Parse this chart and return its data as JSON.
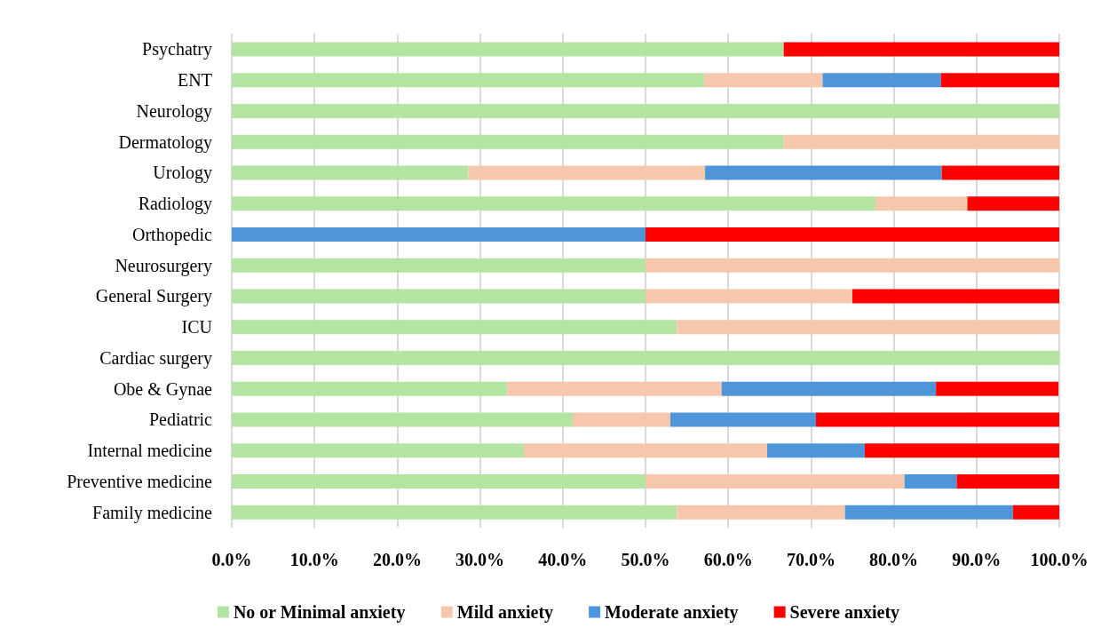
{
  "chart_data": {
    "type": "bar",
    "orientation": "horizontal",
    "stacked": true,
    "categories": [
      "Psychatry",
      "ENT",
      "Neurology",
      "Dermatology",
      "Urology",
      "Radiology",
      "Orthopedic",
      "Neurosurgery",
      "General Surgery",
      "ICU",
      "Cardiac surgery",
      "Obe & Gynae",
      "Pediatric",
      "Internal medicine",
      "Preventive medicine",
      "Family medicine"
    ],
    "series": [
      {
        "name": "No or Minimal anxiety",
        "color": "#b4e4a2",
        "values": [
          66.7,
          57.1,
          100,
          66.7,
          28.6,
          77.8,
          0,
          50,
          50,
          53.8,
          100,
          33.3,
          41.2,
          35.3,
          50,
          53.8
        ]
      },
      {
        "name": "Mild anxiety",
        "color": "#f6c6ad",
        "values": [
          0,
          14.3,
          0,
          33.3,
          28.6,
          11.1,
          0,
          50,
          25,
          46.2,
          0,
          25.9,
          11.8,
          29.4,
          31.3,
          20.3
        ]
      },
      {
        "name": "Moderate anxiety",
        "color": "#4e95d9",
        "values": [
          0,
          14.3,
          0,
          0,
          28.6,
          0,
          50,
          0,
          0,
          0,
          0,
          25.9,
          17.6,
          11.8,
          6.3,
          20.3
        ]
      },
      {
        "name": "Severe anxiety",
        "color": "#ff0000",
        "values": [
          33.3,
          14.3,
          0,
          0,
          14.3,
          11.1,
          50,
          0,
          25,
          0,
          0,
          14.8,
          29.4,
          23.5,
          12.5,
          5.6
        ]
      }
    ],
    "xlim": [
      0,
      100
    ],
    "xticks": [
      {
        "value": 0,
        "label": "0.0%"
      },
      {
        "value": 10,
        "label": "10.0%"
      },
      {
        "value": 20,
        "label": "20.0%"
      },
      {
        "value": 30,
        "label": "30.0%"
      },
      {
        "value": 40,
        "label": "40.0%"
      },
      {
        "value": 50,
        "label": "50.0%"
      },
      {
        "value": 60,
        "label": "60.0%"
      },
      {
        "value": 70,
        "label": "70.0%"
      },
      {
        "value": 80,
        "label": "80.0%"
      },
      {
        "value": 90,
        "label": "90.0%"
      },
      {
        "value": 100,
        "label": "100.0%"
      }
    ],
    "grid": "x",
    "legend": "bottom"
  }
}
